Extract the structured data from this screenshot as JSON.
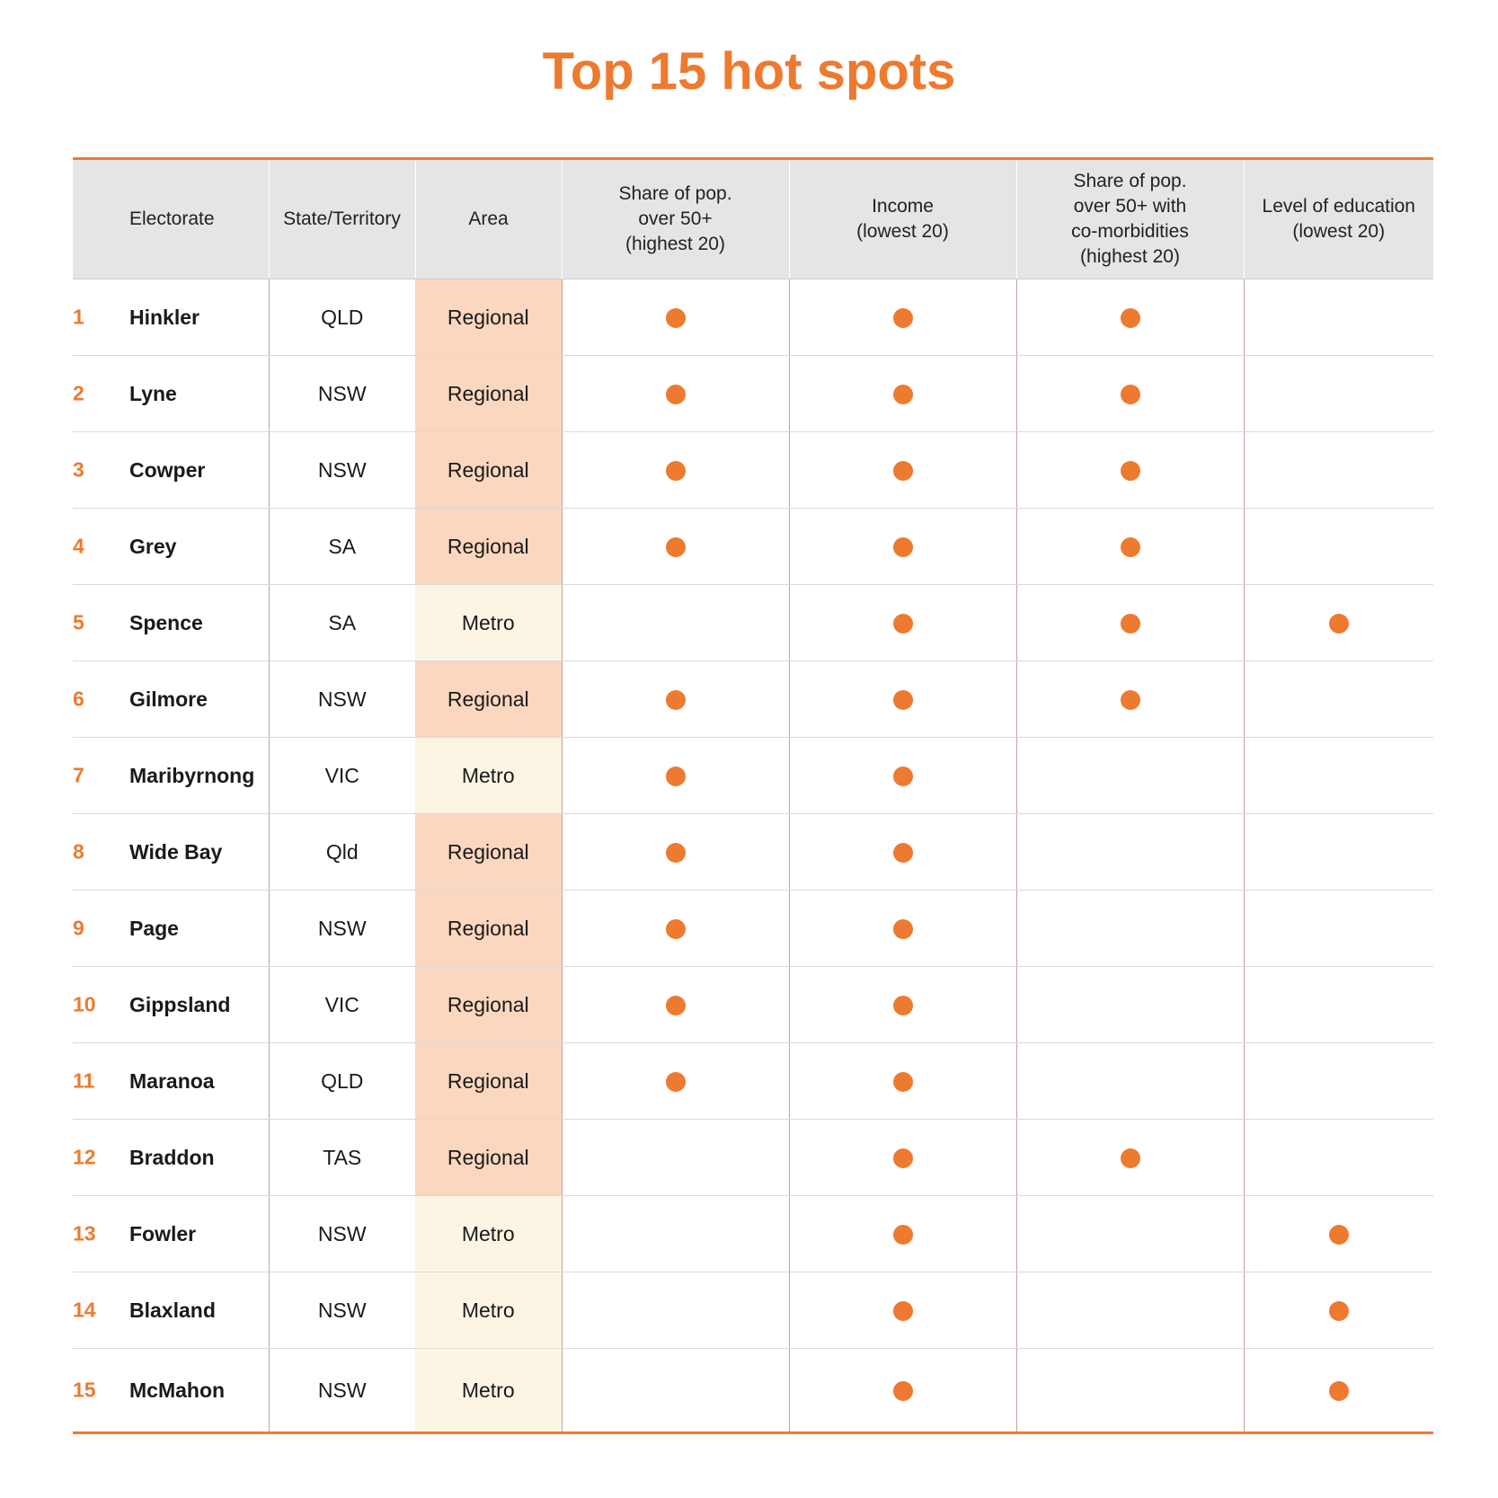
{
  "title": "Top 15 hot spots",
  "colors": {
    "accent": "#ee7a2f",
    "regional": "#fbd7bf",
    "metro": "#fdf5e4",
    "header_bg": "#e5e5e5"
  },
  "chart_data": {
    "type": "table",
    "title": "Top 15 hot spots",
    "columns": [
      {
        "key": "electorate",
        "lines": [
          "Electorate"
        ]
      },
      {
        "key": "state",
        "lines": [
          "State/Territory"
        ]
      },
      {
        "key": "area",
        "lines": [
          "Area"
        ]
      },
      {
        "key": "pop50",
        "lines": [
          "Share of pop.",
          "over 50+",
          "(highest 20)"
        ]
      },
      {
        "key": "income",
        "lines": [
          "Income",
          "(lowest 20)"
        ]
      },
      {
        "key": "comorb",
        "lines": [
          "Share of pop.",
          "over 50+ with",
          "co-morbidities",
          "(highest 20)"
        ]
      },
      {
        "key": "education",
        "lines": [
          "Level of education",
          "(lowest 20)"
        ]
      }
    ],
    "rows": [
      {
        "rank": "1",
        "electorate": "Hinkler",
        "state": "QLD",
        "area": "Regional",
        "pop50": true,
        "income": true,
        "comorb": true,
        "education": false
      },
      {
        "rank": "2",
        "electorate": "Lyne",
        "state": "NSW",
        "area": "Regional",
        "pop50": true,
        "income": true,
        "comorb": true,
        "education": false
      },
      {
        "rank": "3",
        "electorate": "Cowper",
        "state": "NSW",
        "area": "Regional",
        "pop50": true,
        "income": true,
        "comorb": true,
        "education": false
      },
      {
        "rank": "4",
        "electorate": "Grey",
        "state": "SA",
        "area": "Regional",
        "pop50": true,
        "income": true,
        "comorb": true,
        "education": false
      },
      {
        "rank": "5",
        "electorate": "Spence",
        "state": "SA",
        "area": "Metro",
        "pop50": false,
        "income": true,
        "comorb": true,
        "education": true
      },
      {
        "rank": "6",
        "electorate": "Gilmore",
        "state": "NSW",
        "area": "Regional",
        "pop50": true,
        "income": true,
        "comorb": true,
        "education": false
      },
      {
        "rank": "7",
        "electorate": "Maribyrnong",
        "state": "VIC",
        "area": "Metro",
        "pop50": true,
        "income": true,
        "comorb": false,
        "education": false
      },
      {
        "rank": "8",
        "electorate": "Wide Bay",
        "state": "Qld",
        "area": "Regional",
        "pop50": true,
        "income": true,
        "comorb": false,
        "education": false
      },
      {
        "rank": "9",
        "electorate": "Page",
        "state": "NSW",
        "area": "Regional",
        "pop50": true,
        "income": true,
        "comorb": false,
        "education": false
      },
      {
        "rank": "10",
        "electorate": "Gippsland",
        "state": "VIC",
        "area": "Regional",
        "pop50": true,
        "income": true,
        "comorb": false,
        "education": false
      },
      {
        "rank": "11",
        "electorate": "Maranoa",
        "state": "QLD",
        "area": "Regional",
        "pop50": true,
        "income": true,
        "comorb": false,
        "education": false
      },
      {
        "rank": "12",
        "electorate": "Braddon",
        "state": "TAS",
        "area": "Regional",
        "pop50": false,
        "income": true,
        "comorb": true,
        "education": false
      },
      {
        "rank": "13",
        "electorate": "Fowler",
        "state": "NSW",
        "area": "Metro",
        "pop50": false,
        "income": true,
        "comorb": false,
        "education": true
      },
      {
        "rank": "14",
        "electorate": "Blaxland",
        "state": "NSW",
        "area": "Metro",
        "pop50": false,
        "income": true,
        "comorb": false,
        "education": true
      },
      {
        "rank": "15",
        "electorate": "McMahon",
        "state": "NSW",
        "area": "Metro",
        "pop50": false,
        "income": true,
        "comorb": false,
        "education": true
      }
    ]
  }
}
